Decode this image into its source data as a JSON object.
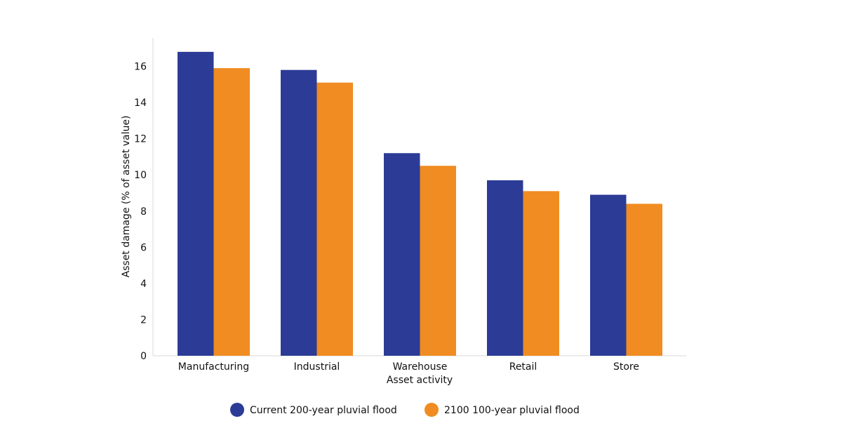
{
  "chart_data": {
    "type": "bar",
    "title": "",
    "xlabel": "Asset activity",
    "ylabel": "Asset damage (% of asset value)",
    "categories": [
      "Manufacturing",
      "Industrial",
      "Warehouse",
      "Retail",
      "Store"
    ],
    "series": [
      {
        "name": "Current 200-year pluvial flood",
        "color": "#2b3b96",
        "values": [
          16.8,
          15.8,
          11.2,
          9.7,
          8.9
        ]
      },
      {
        "name": "2100 100-year pluvial flood",
        "color": "#f08c21",
        "values": [
          15.9,
          15.1,
          10.5,
          9.1,
          8.4
        ]
      }
    ],
    "ylim": [
      0,
      17.6
    ],
    "yticks": [
      0,
      2,
      4,
      6,
      8,
      10,
      12,
      14,
      16
    ],
    "grid": false,
    "legend_position": "bottom-center"
  }
}
